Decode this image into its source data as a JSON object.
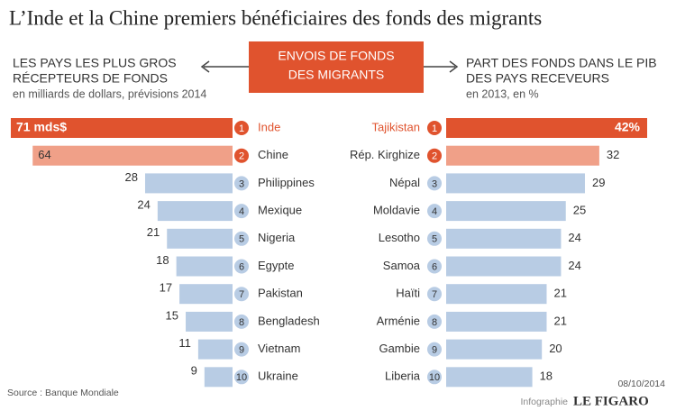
{
  "title": "L’Inde et la Chine premiers bénéficiaires des fonds des migrants",
  "center_box": [
    "ENVOIS DE FONDS",
    "DES MIGRANTS"
  ],
  "source": "Source : Banque Mondiale",
  "date": "08/10/2014",
  "credit": "Infographie",
  "brand": "LE FIGARO",
  "chart_data": [
    {
      "type": "bar",
      "title": [
        "LES PAYS LES PLUS GROS",
        "RÉCEPTEURS DE FONDS"
      ],
      "subtitle": "en milliards de dollars, prévisions 2014",
      "ranks": [
        1,
        2,
        3,
        4,
        5,
        6,
        7,
        8,
        9,
        10
      ],
      "categories": [
        "Inde",
        "Chine",
        "Philippines",
        "Mexique",
        "Nigeria",
        "Egypte",
        "Pakistan",
        "Bengladesh",
        "Vietnam",
        "Ukraine"
      ],
      "values": [
        71,
        64,
        28,
        24,
        21,
        18,
        17,
        15,
        11,
        9
      ],
      "value_labels": [
        "71 mds$",
        "64",
        "28",
        "24",
        "21",
        "18",
        "17",
        "15",
        "11",
        "9"
      ],
      "colors": [
        "#e0532e",
        "#f0a088",
        "#b8cce4",
        "#b8cce4",
        "#b8cce4",
        "#b8cce4",
        "#b8cce4",
        "#b8cce4",
        "#b8cce4",
        "#b8cce4"
      ]
    },
    {
      "type": "bar",
      "title": [
        "PART DES FONDS DANS LE PIB",
        "DES PAYS RECEVEURS"
      ],
      "subtitle": "en 2013, en %",
      "ranks": [
        1,
        2,
        3,
        4,
        5,
        6,
        7,
        8,
        9,
        10
      ],
      "categories": [
        "Tajikistan",
        "Rép. Kirghize",
        "Népal",
        "Moldavie",
        "Lesotho",
        "Samoa",
        "Haïti",
        "Arménie",
        "Gambie",
        "Liberia"
      ],
      "values": [
        42,
        32,
        29,
        25,
        24,
        24,
        21,
        21,
        20,
        18
      ],
      "value_labels": [
        "42%",
        "32",
        "29",
        "25",
        "24",
        "24",
        "21",
        "21",
        "20",
        "18"
      ],
      "colors": [
        "#e0532e",
        "#f0a088",
        "#b8cce4",
        "#b8cce4",
        "#b8cce4",
        "#b8cce4",
        "#b8cce4",
        "#b8cce4",
        "#b8cce4",
        "#b8cce4"
      ]
    }
  ]
}
